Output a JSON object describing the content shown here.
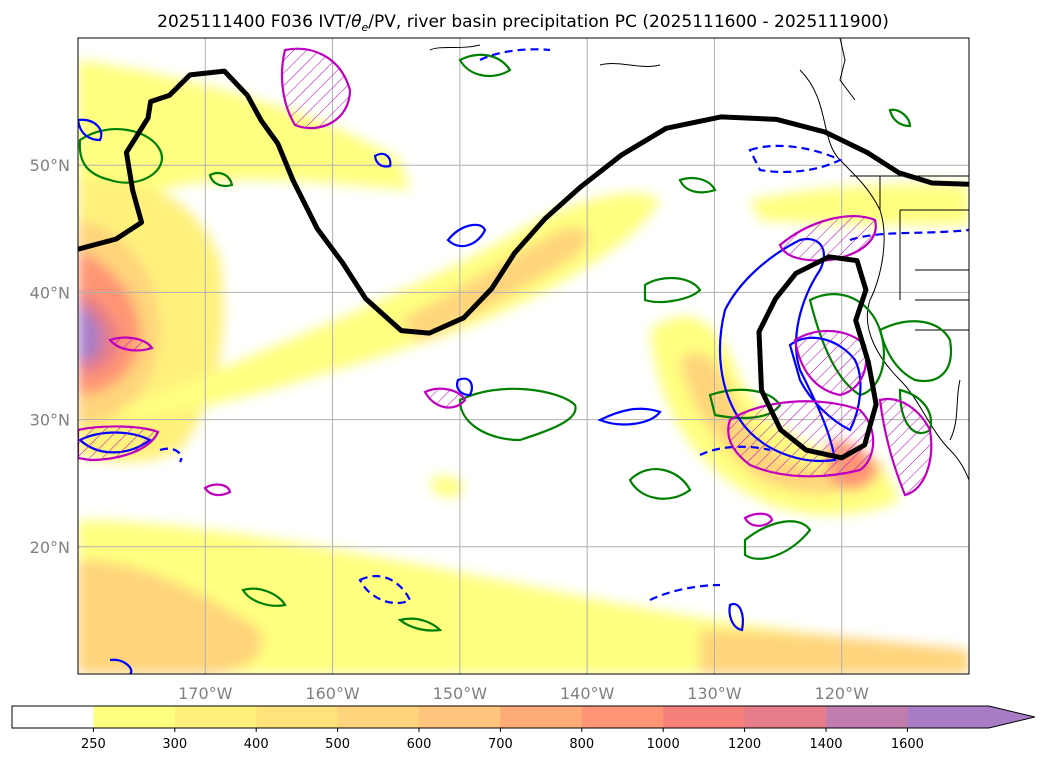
{
  "chart_data": {
    "type": "map",
    "title": "2025111400 F036 IVT/θe/PV, river basin precipitation PC (2025111600 - 2025111900)",
    "title_parts": {
      "prefix": "2025111400 F036 IVT/",
      "theta": "θ",
      "sub": "e",
      "suffix": "/PV, river basin precipitation PC (2025111600 - 2025111900)"
    },
    "lon_range": [
      -180,
      -110
    ],
    "lat_range": [
      10,
      60
    ],
    "lon_ticks": [
      {
        "value": -170,
        "label": "170°W"
      },
      {
        "value": -160,
        "label": "160°W"
      },
      {
        "value": -150,
        "label": "150°W"
      },
      {
        "value": -140,
        "label": "140°W"
      },
      {
        "value": -130,
        "label": "130°W"
      },
      {
        "value": -120,
        "label": "120°W"
      }
    ],
    "lat_ticks": [
      {
        "value": 20,
        "label": "20°N"
      },
      {
        "value": 30,
        "label": "30°N"
      },
      {
        "value": 40,
        "label": "40°N"
      },
      {
        "value": 50,
        "label": "50°N"
      }
    ],
    "grid": true,
    "colorbar": {
      "levels": [
        250,
        300,
        400,
        500,
        600,
        700,
        800,
        1000,
        1200,
        1400,
        1600
      ],
      "labels": [
        "250",
        "300",
        "400",
        "500",
        "600",
        "700",
        "800",
        "1000",
        "1200",
        "1400",
        "1600"
      ],
      "colors": [
        "#ffff80",
        "#fff17c",
        "#ffe27a",
        "#ffd47c",
        "#ffc57c",
        "#ffab78",
        "#ff9575",
        "#f6807a",
        "#e57d8a",
        "#c07dae",
        "#a97dc6"
      ],
      "under_color": "#ffffff",
      "extend": "max"
    },
    "contours": {
      "pv_color": "#000000",
      "theta_e_color": "#0000ff",
      "theta_e_negative_color": "#0000ff",
      "precip_pc_color": "#008000",
      "hatch_color": "#c000c0"
    },
    "pv_contour": [
      [
        -180,
        43.4
      ],
      [
        -177,
        44.2
      ],
      [
        -175,
        45.5
      ],
      [
        -175.7,
        48
      ],
      [
        -176.2,
        51
      ],
      [
        -174.5,
        53.7
      ],
      [
        -174.3,
        55
      ],
      [
        -172.8,
        55.5
      ],
      [
        -171.2,
        57.1
      ],
      [
        -168.5,
        57.4
      ],
      [
        -166.7,
        55.5
      ],
      [
        -165.6,
        53.5
      ],
      [
        -164.3,
        51.7
      ],
      [
        -163.1,
        48.8
      ],
      [
        -161.2,
        45
      ],
      [
        -159.2,
        42.3
      ],
      [
        -157.4,
        39.5
      ],
      [
        -154.6,
        37
      ],
      [
        -152.4,
        36.8
      ],
      [
        -149.7,
        38
      ],
      [
        -147.5,
        40.3
      ],
      [
        -145.7,
        43.1
      ],
      [
        -143.3,
        45.8
      ],
      [
        -140.5,
        48.3
      ],
      [
        -137.3,
        50.8
      ],
      [
        -133.8,
        52.9
      ],
      [
        -129.5,
        53.8
      ],
      [
        -125.1,
        53.6
      ],
      [
        -121.3,
        52.6
      ],
      [
        -118,
        51
      ],
      [
        -115.5,
        49.4
      ],
      [
        -112.9,
        48.6
      ],
      [
        -110,
        48.5
      ]
    ],
    "pv_closed_contour": [
      [
        -126.5,
        36.9
      ],
      [
        -125.2,
        39.5
      ],
      [
        -123.6,
        41.5
      ],
      [
        -121,
        42.8
      ],
      [
        -118.8,
        42.5
      ],
      [
        -118.1,
        40.2
      ],
      [
        -118.9,
        37.8
      ],
      [
        -117.9,
        34.5
      ],
      [
        -117.3,
        31.2
      ],
      [
        -118.2,
        28
      ],
      [
        -120,
        27
      ],
      [
        -122.8,
        27.6
      ],
      [
        -124.8,
        29.2
      ],
      [
        -126.3,
        32.3
      ],
      [
        -126.5,
        36.9
      ]
    ]
  }
}
